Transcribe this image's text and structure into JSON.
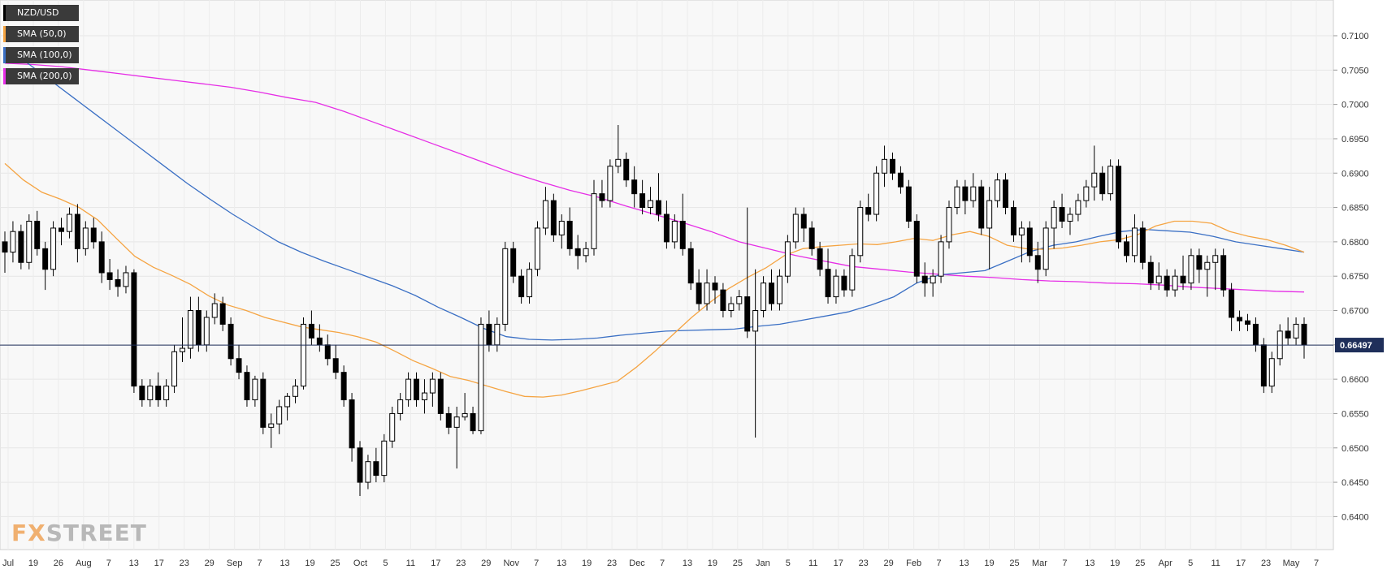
{
  "legend": [
    {
      "label": "NZD/USD",
      "color": "#000000"
    },
    {
      "label": "SMA (50,0)",
      "color": "#f5a442"
    },
    {
      "label": "SMA (100,0)",
      "color": "#3a6fc4"
    },
    {
      "label": "SMA (200,0)",
      "color": "#e62ee6"
    }
  ],
  "watermark": {
    "part1": "FX",
    "part2": "STREET"
  },
  "current_price": {
    "label": "0.66497",
    "value": 0.66497
  },
  "chart_data": {
    "type": "candlestick",
    "title": "",
    "ylim": [
      0.6352,
      0.7152
    ],
    "y_ticks": [
      "0.6400",
      "0.6450",
      "0.6500",
      "0.6550",
      "0.6600",
      "0.6650",
      "0.6700",
      "0.6750",
      "0.6800",
      "0.6850",
      "0.6900",
      "0.6950",
      "0.7000",
      "0.7050",
      "0.7100"
    ],
    "x_ticks": [
      "Jul",
      "19",
      "26",
      "Aug",
      "7",
      "13",
      "17",
      "23",
      "29",
      "Sep",
      "7",
      "13",
      "19",
      "25",
      "Oct",
      "5",
      "11",
      "17",
      "23",
      "29",
      "Nov",
      "7",
      "13",
      "19",
      "23",
      "Dec",
      "7",
      "13",
      "19",
      "25",
      "Jan",
      "5",
      "11",
      "17",
      "23",
      "29",
      "Feb",
      "7",
      "13",
      "19",
      "25",
      "Mar",
      "7",
      "13",
      "19",
      "25",
      "Apr",
      "5",
      "11",
      "17",
      "23",
      "May",
      "7"
    ],
    "grid": true,
    "legend_position": "top-left",
    "candles": [
      [
        0.68,
        0.6815,
        0.6755,
        0.6785
      ],
      [
        0.6785,
        0.683,
        0.677,
        0.6815
      ],
      [
        0.6815,
        0.6825,
        0.676,
        0.677
      ],
      [
        0.677,
        0.684,
        0.676,
        0.683
      ],
      [
        0.683,
        0.6845,
        0.678,
        0.679
      ],
      [
        0.679,
        0.68,
        0.673,
        0.676
      ],
      [
        0.676,
        0.683,
        0.675,
        0.682
      ],
      [
        0.682,
        0.6835,
        0.6795,
        0.6815
      ],
      [
        0.6815,
        0.685,
        0.6805,
        0.684
      ],
      [
        0.684,
        0.6855,
        0.677,
        0.679
      ],
      [
        0.679,
        0.683,
        0.678,
        0.682
      ],
      [
        0.682,
        0.6835,
        0.679,
        0.68
      ],
      [
        0.68,
        0.6815,
        0.674,
        0.6755
      ],
      [
        0.6755,
        0.6775,
        0.673,
        0.6745
      ],
      [
        0.6745,
        0.676,
        0.672,
        0.6735
      ],
      [
        0.6735,
        0.6765,
        0.6725,
        0.6755
      ],
      [
        0.6755,
        0.676,
        0.658,
        0.659
      ],
      [
        0.659,
        0.66,
        0.656,
        0.657
      ],
      [
        0.657,
        0.66,
        0.656,
        0.659
      ],
      [
        0.659,
        0.661,
        0.656,
        0.657
      ],
      [
        0.657,
        0.66,
        0.656,
        0.659
      ],
      [
        0.659,
        0.665,
        0.658,
        0.664
      ],
      [
        0.664,
        0.669,
        0.6625,
        0.6645
      ],
      [
        0.6645,
        0.672,
        0.663,
        0.67
      ],
      [
        0.67,
        0.672,
        0.664,
        0.665
      ],
      [
        0.665,
        0.67,
        0.664,
        0.669
      ],
      [
        0.669,
        0.6725,
        0.668,
        0.671
      ],
      [
        0.671,
        0.672,
        0.667,
        0.668
      ],
      [
        0.668,
        0.669,
        0.662,
        0.663
      ],
      [
        0.663,
        0.665,
        0.66,
        0.661
      ],
      [
        0.661,
        0.662,
        0.656,
        0.657
      ],
      [
        0.657,
        0.6605,
        0.656,
        0.66
      ],
      [
        0.66,
        0.661,
        0.652,
        0.653
      ],
      [
        0.653,
        0.655,
        0.65,
        0.6535
      ],
      [
        0.6535,
        0.657,
        0.652,
        0.656
      ],
      [
        0.656,
        0.658,
        0.654,
        0.6575
      ],
      [
        0.6575,
        0.66,
        0.6565,
        0.659
      ],
      [
        0.659,
        0.669,
        0.6585,
        0.668
      ],
      [
        0.668,
        0.67,
        0.665,
        0.666
      ],
      [
        0.666,
        0.668,
        0.664,
        0.665
      ],
      [
        0.665,
        0.6665,
        0.662,
        0.663
      ],
      [
        0.663,
        0.665,
        0.66,
        0.661
      ],
      [
        0.661,
        0.662,
        0.656,
        0.657
      ],
      [
        0.657,
        0.658,
        0.648,
        0.65
      ],
      [
        0.65,
        0.651,
        0.643,
        0.645
      ],
      [
        0.645,
        0.649,
        0.644,
        0.648
      ],
      [
        0.648,
        0.65,
        0.645,
        0.646
      ],
      [
        0.646,
        0.652,
        0.645,
        0.651
      ],
      [
        0.651,
        0.656,
        0.65,
        0.655
      ],
      [
        0.655,
        0.658,
        0.654,
        0.657
      ],
      [
        0.657,
        0.661,
        0.656,
        0.66
      ],
      [
        0.66,
        0.661,
        0.656,
        0.657
      ],
      [
        0.657,
        0.66,
        0.655,
        0.658
      ],
      [
        0.658,
        0.661,
        0.656,
        0.66
      ],
      [
        0.66,
        0.661,
        0.654,
        0.655
      ],
      [
        0.655,
        0.656,
        0.652,
        0.653
      ],
      [
        0.653,
        0.656,
        0.647,
        0.6545
      ],
      [
        0.6545,
        0.658,
        0.654,
        0.655
      ],
      [
        0.655,
        0.656,
        0.652,
        0.6525
      ],
      [
        0.6525,
        0.669,
        0.652,
        0.668
      ],
      [
        0.668,
        0.67,
        0.664,
        0.665
      ],
      [
        0.665,
        0.669,
        0.664,
        0.668
      ],
      [
        0.668,
        0.68,
        0.667,
        0.679
      ],
      [
        0.679,
        0.68,
        0.674,
        0.675
      ],
      [
        0.675,
        0.676,
        0.671,
        0.672
      ],
      [
        0.672,
        0.677,
        0.671,
        0.676
      ],
      [
        0.676,
        0.683,
        0.675,
        0.682
      ],
      [
        0.682,
        0.688,
        0.681,
        0.686
      ],
      [
        0.686,
        0.687,
        0.68,
        0.681
      ],
      [
        0.681,
        0.684,
        0.679,
        0.683
      ],
      [
        0.683,
        0.685,
        0.678,
        0.679
      ],
      [
        0.679,
        0.681,
        0.676,
        0.678
      ],
      [
        0.678,
        0.68,
        0.677,
        0.679
      ],
      [
        0.679,
        0.689,
        0.678,
        0.687
      ],
      [
        0.687,
        0.689,
        0.685,
        0.686
      ],
      [
        0.686,
        0.692,
        0.685,
        0.691
      ],
      [
        0.691,
        0.697,
        0.69,
        0.692
      ],
      [
        0.692,
        0.693,
        0.688,
        0.689
      ],
      [
        0.689,
        0.691,
        0.685,
        0.687
      ],
      [
        0.687,
        0.689,
        0.684,
        0.685
      ],
      [
        0.685,
        0.688,
        0.684,
        0.686
      ],
      [
        0.686,
        0.69,
        0.683,
        0.684
      ],
      [
        0.684,
        0.686,
        0.679,
        0.68
      ],
      [
        0.68,
        0.684,
        0.679,
        0.683
      ],
      [
        0.683,
        0.687,
        0.678,
        0.679
      ],
      [
        0.679,
        0.68,
        0.673,
        0.674
      ],
      [
        0.674,
        0.676,
        0.67,
        0.671
      ],
      [
        0.671,
        0.676,
        0.67,
        0.674
      ],
      [
        0.674,
        0.675,
        0.671,
        0.673
      ],
      [
        0.673,
        0.674,
        0.669,
        0.67
      ],
      [
        0.67,
        0.672,
        0.669,
        0.671
      ],
      [
        0.671,
        0.673,
        0.67,
        0.672
      ],
      [
        0.672,
        0.685,
        0.666,
        0.667
      ],
      [
        0.667,
        0.676,
        0.6515,
        0.67
      ],
      [
        0.67,
        0.675,
        0.669,
        0.674
      ],
      [
        0.674,
        0.676,
        0.67,
        0.671
      ],
      [
        0.671,
        0.676,
        0.67,
        0.675
      ],
      [
        0.675,
        0.681,
        0.674,
        0.68
      ],
      [
        0.68,
        0.685,
        0.679,
        0.684
      ],
      [
        0.684,
        0.685,
        0.68,
        0.682
      ],
      [
        0.682,
        0.683,
        0.678,
        0.679
      ],
      [
        0.679,
        0.68,
        0.675,
        0.676
      ],
      [
        0.676,
        0.679,
        0.671,
        0.672
      ],
      [
        0.672,
        0.676,
        0.671,
        0.675
      ],
      [
        0.675,
        0.676,
        0.672,
        0.673
      ],
      [
        0.673,
        0.679,
        0.672,
        0.678
      ],
      [
        0.678,
        0.686,
        0.677,
        0.685
      ],
      [
        0.685,
        0.687,
        0.683,
        0.684
      ],
      [
        0.684,
        0.691,
        0.683,
        0.69
      ],
      [
        0.69,
        0.694,
        0.688,
        0.692
      ],
      [
        0.692,
        0.693,
        0.689,
        0.69
      ],
      [
        0.69,
        0.691,
        0.687,
        0.688
      ],
      [
        0.688,
        0.689,
        0.682,
        0.683
      ],
      [
        0.683,
        0.684,
        0.674,
        0.675
      ],
      [
        0.675,
        0.677,
        0.672,
        0.674
      ],
      [
        0.674,
        0.676,
        0.672,
        0.675
      ],
      [
        0.675,
        0.681,
        0.674,
        0.68
      ],
      [
        0.68,
        0.686,
        0.679,
        0.685
      ],
      [
        0.685,
        0.689,
        0.684,
        0.688
      ],
      [
        0.688,
        0.689,
        0.684,
        0.686
      ],
      [
        0.686,
        0.69,
        0.685,
        0.688
      ],
      [
        0.688,
        0.689,
        0.681,
        0.682
      ],
      [
        0.682,
        0.688,
        0.676,
        0.686
      ],
      [
        0.686,
        0.69,
        0.685,
        0.689
      ],
      [
        0.689,
        0.69,
        0.684,
        0.685
      ],
      [
        0.685,
        0.686,
        0.68,
        0.681
      ],
      [
        0.681,
        0.683,
        0.677,
        0.682
      ],
      [
        0.682,
        0.683,
        0.677,
        0.678
      ],
      [
        0.678,
        0.68,
        0.674,
        0.676
      ],
      [
        0.676,
        0.683,
        0.675,
        0.682
      ],
      [
        0.682,
        0.686,
        0.679,
        0.685
      ],
      [
        0.685,
        0.687,
        0.682,
        0.683
      ],
      [
        0.683,
        0.685,
        0.681,
        0.684
      ],
      [
        0.684,
        0.687,
        0.683,
        0.686
      ],
      [
        0.686,
        0.689,
        0.685,
        0.688
      ],
      [
        0.688,
        0.694,
        0.686,
        0.69
      ],
      [
        0.69,
        0.691,
        0.686,
        0.687
      ],
      [
        0.687,
        0.692,
        0.686,
        0.691
      ],
      [
        0.691,
        0.692,
        0.679,
        0.68
      ],
      [
        0.68,
        0.681,
        0.677,
        0.678
      ],
      [
        0.678,
        0.684,
        0.677,
        0.682
      ],
      [
        0.682,
        0.683,
        0.676,
        0.677
      ],
      [
        0.677,
        0.678,
        0.673,
        0.674
      ],
      [
        0.674,
        0.677,
        0.673,
        0.675
      ],
      [
        0.675,
        0.676,
        0.672,
        0.673
      ],
      [
        0.673,
        0.676,
        0.672,
        0.675
      ],
      [
        0.675,
        0.678,
        0.673,
        0.674
      ],
      [
        0.674,
        0.679,
        0.673,
        0.678
      ],
      [
        0.678,
        0.679,
        0.674,
        0.676
      ],
      [
        0.676,
        0.678,
        0.672,
        0.677
      ],
      [
        0.677,
        0.679,
        0.673,
        0.678
      ],
      [
        0.678,
        0.679,
        0.672,
        0.673
      ],
      [
        0.673,
        0.674,
        0.667,
        0.669
      ],
      [
        0.669,
        0.67,
        0.667,
        0.6685
      ],
      [
        0.6685,
        0.6695,
        0.667,
        0.668
      ],
      [
        0.668,
        0.669,
        0.664,
        0.665
      ],
      [
        0.665,
        0.666,
        0.658,
        0.659
      ],
      [
        0.659,
        0.664,
        0.658,
        0.663
      ],
      [
        0.663,
        0.668,
        0.662,
        0.667
      ],
      [
        0.667,
        0.669,
        0.665,
        0.666
      ],
      [
        0.666,
        0.669,
        0.665,
        0.668
      ],
      [
        0.668,
        0.669,
        0.663,
        0.665
      ]
    ],
    "sma50": [
      0.6914,
      0.689,
      0.6872,
      0.6862,
      0.685,
      0.6832,
      0.6805,
      0.6779,
      0.6763,
      0.6751,
      0.6738,
      0.6721,
      0.6708,
      0.67,
      0.669,
      0.6683,
      0.6676,
      0.6672,
      0.6668,
      0.6662,
      0.6654,
      0.6641,
      0.6627,
      0.6616,
      0.6604,
      0.6598,
      0.659,
      0.6582,
      0.6575,
      0.6574,
      0.6577,
      0.6583,
      0.659,
      0.6597,
      0.6617,
      0.664,
      0.6665,
      0.669,
      0.6712,
      0.6732,
      0.6748,
      0.6762,
      0.678,
      0.679,
      0.6793,
      0.6795,
      0.6797,
      0.6796,
      0.68,
      0.6805,
      0.6802,
      0.681,
      0.6815,
      0.6808,
      0.6795,
      0.679,
      0.6789,
      0.6791,
      0.6795,
      0.68,
      0.6803,
      0.681,
      0.6823,
      0.683,
      0.683,
      0.6827,
      0.6815,
      0.6808,
      0.6803,
      0.6795,
      0.6785
    ],
    "sma100": [
      0.708,
      0.706,
      0.7035,
      0.701,
      0.6985,
      0.696,
      0.6935,
      0.691,
      0.6885,
      0.6862,
      0.684,
      0.682,
      0.68,
      0.6785,
      0.6772,
      0.676,
      0.6748,
      0.6736,
      0.6722,
      0.6705,
      0.669,
      0.6674,
      0.6662,
      0.6658,
      0.6657,
      0.6658,
      0.666,
      0.6664,
      0.6667,
      0.667,
      0.6671,
      0.6672,
      0.6673,
      0.6677,
      0.668,
      0.6686,
      0.6692,
      0.6698,
      0.6708,
      0.672,
      0.674,
      0.6752,
      0.6755,
      0.6758,
      0.6772,
      0.6786,
      0.6795,
      0.68,
      0.6808,
      0.6815,
      0.6818,
      0.6816,
      0.6814,
      0.6808,
      0.68,
      0.6795,
      0.679,
      0.6785
    ],
    "sma200": [
      0.706,
      0.7058,
      0.7055,
      0.705,
      0.7045,
      0.704,
      0.7035,
      0.703,
      0.7025,
      0.7018,
      0.701,
      0.7003,
      0.699,
      0.6975,
      0.696,
      0.6945,
      0.693,
      0.6915,
      0.69,
      0.6887,
      0.6875,
      0.6865,
      0.6852,
      0.684,
      0.6828,
      0.6815,
      0.68,
      0.679,
      0.678,
      0.6772,
      0.6764,
      0.676,
      0.6756,
      0.6753,
      0.675,
      0.6748,
      0.6745,
      0.6743,
      0.6742,
      0.674,
      0.6739,
      0.6737,
      0.6734,
      0.6732,
      0.673,
      0.6728,
      0.6727
    ]
  }
}
